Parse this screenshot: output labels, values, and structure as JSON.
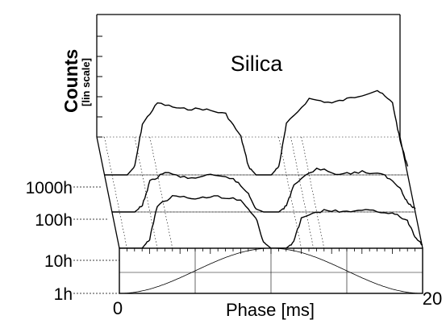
{
  "chart_data": {
    "type": "line",
    "title": "Silica",
    "ylabel": "Counts",
    "ylabel_sub": "[lin scale]",
    "xlabel": "Phase [ms]",
    "xlim": [
      0,
      20
    ],
    "x_tick_labels": [
      "0",
      "20"
    ],
    "depth_axis_labels": [
      "1000h",
      "100h",
      "10h",
      "1h"
    ],
    "series": [
      {
        "name": "1000h",
        "x": [
          0,
          1.5,
          2,
          2.5,
          3.5,
          5,
          6.5,
          8,
          9,
          9.5,
          10,
          11,
          11.5,
          12,
          13.5,
          15,
          16.5,
          18,
          19,
          19.5,
          20
        ],
        "y": [
          0,
          0,
          0.1,
          0.6,
          0.85,
          0.78,
          0.78,
          0.72,
          0.45,
          0.1,
          0,
          0,
          0.1,
          0.6,
          0.9,
          0.85,
          0.92,
          1.0,
          0.85,
          0.4,
          0.1
        ]
      },
      {
        "name": "100h",
        "x": [
          0,
          1.5,
          2,
          2.5,
          3.5,
          5,
          6.5,
          8,
          9,
          9.5,
          10,
          11,
          11.5,
          12,
          13.5,
          15,
          16.5,
          18,
          19,
          19.5,
          20
        ],
        "y": [
          0,
          0,
          0.1,
          0.5,
          0.65,
          0.55,
          0.6,
          0.55,
          0.3,
          0.05,
          0,
          0,
          0.1,
          0.45,
          0.72,
          0.62,
          0.66,
          0.6,
          0.4,
          0.15,
          0.05
        ]
      },
      {
        "name": "10h",
        "x": [
          0,
          1.5,
          2,
          2.5,
          3.5,
          5,
          6.5,
          8,
          9,
          9.5,
          10,
          11,
          11.5,
          12,
          13.5,
          15,
          16.5,
          18,
          19,
          19.5,
          20
        ],
        "y": [
          0,
          0,
          0.15,
          0.7,
          0.85,
          0.82,
          0.85,
          0.8,
          0.5,
          0.1,
          0,
          0,
          0.1,
          0.5,
          0.62,
          0.6,
          0.62,
          0.58,
          0.45,
          0.2,
          0.05
        ]
      }
    ],
    "reference_curve": "cosine phase modulation",
    "grid": true
  }
}
